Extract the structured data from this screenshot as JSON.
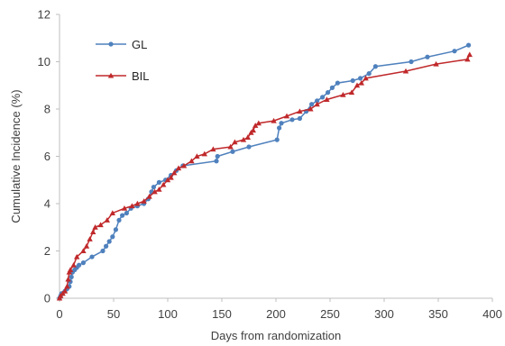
{
  "chart_data": {
    "type": "line",
    "title": "",
    "xlabel": "Days from randomization",
    "ylabel": "Cumulative Incidence (%)",
    "xlim": [
      0,
      400
    ],
    "ylim": [
      0,
      12
    ],
    "xticks": [
      0,
      50,
      100,
      150,
      200,
      250,
      300,
      350,
      400
    ],
    "yticks": [
      0,
      2,
      4,
      6,
      8,
      10,
      12
    ],
    "grid": false,
    "legend_position": "top-left",
    "series": [
      {
        "name": "GL",
        "color": "#4f81bd",
        "marker": "circle",
        "points": [
          [
            0,
            0
          ],
          [
            1,
            0.1
          ],
          [
            2,
            0.2
          ],
          [
            5,
            0.3
          ],
          [
            7,
            0.4
          ],
          [
            9,
            0.5
          ],
          [
            10,
            0.7
          ],
          [
            11,
            0.9
          ],
          [
            12,
            1.1
          ],
          [
            14,
            1.2
          ],
          [
            16,
            1.3
          ],
          [
            18,
            1.4
          ],
          [
            22,
            1.5
          ],
          [
            30,
            1.75
          ],
          [
            40,
            2.0
          ],
          [
            43,
            2.2
          ],
          [
            46,
            2.4
          ],
          [
            49,
            2.6
          ],
          [
            52,
            2.9
          ],
          [
            55,
            3.3
          ],
          [
            58,
            3.5
          ],
          [
            62,
            3.6
          ],
          [
            66,
            3.8
          ],
          [
            72,
            3.9
          ],
          [
            78,
            4.0
          ],
          [
            82,
            4.2
          ],
          [
            85,
            4.5
          ],
          [
            87,
            4.7
          ],
          [
            92,
            4.9
          ],
          [
            98,
            5.0
          ],
          [
            103,
            5.2
          ],
          [
            108,
            5.4
          ],
          [
            114,
            5.6
          ],
          [
            145,
            5.8
          ],
          [
            146,
            6.0
          ],
          [
            160,
            6.2
          ],
          [
            175,
            6.4
          ],
          [
            201,
            6.7
          ],
          [
            203,
            7.2
          ],
          [
            205,
            7.4
          ],
          [
            215,
            7.55
          ],
          [
            222,
            7.6
          ],
          [
            228,
            7.9
          ],
          [
            233,
            8.2
          ],
          [
            238,
            8.35
          ],
          [
            243,
            8.5
          ],
          [
            248,
            8.7
          ],
          [
            252,
            8.9
          ],
          [
            257,
            9.1
          ],
          [
            271,
            9.2
          ],
          [
            278,
            9.3
          ],
          [
            286,
            9.5
          ],
          [
            292,
            9.8
          ],
          [
            325,
            10.0
          ],
          [
            340,
            10.2
          ],
          [
            365,
            10.45
          ],
          [
            378,
            10.7
          ]
        ]
      },
      {
        "name": "BIL",
        "color": "#c0292b",
        "marker": "triangle",
        "points": [
          [
            0,
            0
          ],
          [
            1,
            0.1
          ],
          [
            3,
            0.2
          ],
          [
            5,
            0.3
          ],
          [
            7,
            0.5
          ],
          [
            8,
            0.8
          ],
          [
            9,
            1.1
          ],
          [
            10,
            1.2
          ],
          [
            13,
            1.4
          ],
          [
            16,
            1.75
          ],
          [
            22,
            2.0
          ],
          [
            25,
            2.2
          ],
          [
            28,
            2.5
          ],
          [
            31,
            2.8
          ],
          [
            33,
            3.0
          ],
          [
            38,
            3.1
          ],
          [
            44,
            3.3
          ],
          [
            49,
            3.6
          ],
          [
            60,
            3.8
          ],
          [
            67,
            3.9
          ],
          [
            72,
            4.0
          ],
          [
            78,
            4.1
          ],
          [
            83,
            4.3
          ],
          [
            88,
            4.5
          ],
          [
            92,
            4.6
          ],
          [
            96,
            4.8
          ],
          [
            100,
            5.0
          ],
          [
            103,
            5.1
          ],
          [
            106,
            5.3
          ],
          [
            110,
            5.5
          ],
          [
            115,
            5.6
          ],
          [
            122,
            5.8
          ],
          [
            127,
            6.0
          ],
          [
            134,
            6.1
          ],
          [
            142,
            6.3
          ],
          [
            158,
            6.4
          ],
          [
            162,
            6.6
          ],
          [
            170,
            6.7
          ],
          [
            174,
            6.8
          ],
          [
            177,
            7.0
          ],
          [
            179,
            7.1
          ],
          [
            181,
            7.3
          ],
          [
            184,
            7.4
          ],
          [
            198,
            7.5
          ],
          [
            210,
            7.7
          ],
          [
            222,
            7.9
          ],
          [
            232,
            8.0
          ],
          [
            238,
            8.2
          ],
          [
            247,
            8.4
          ],
          [
            262,
            8.6
          ],
          [
            270,
            8.7
          ],
          [
            275,
            9.0
          ],
          [
            279,
            9.1
          ],
          [
            283,
            9.3
          ],
          [
            320,
            9.6
          ],
          [
            348,
            9.9
          ],
          [
            377,
            10.1
          ],
          [
            379,
            10.3
          ]
        ]
      }
    ]
  }
}
